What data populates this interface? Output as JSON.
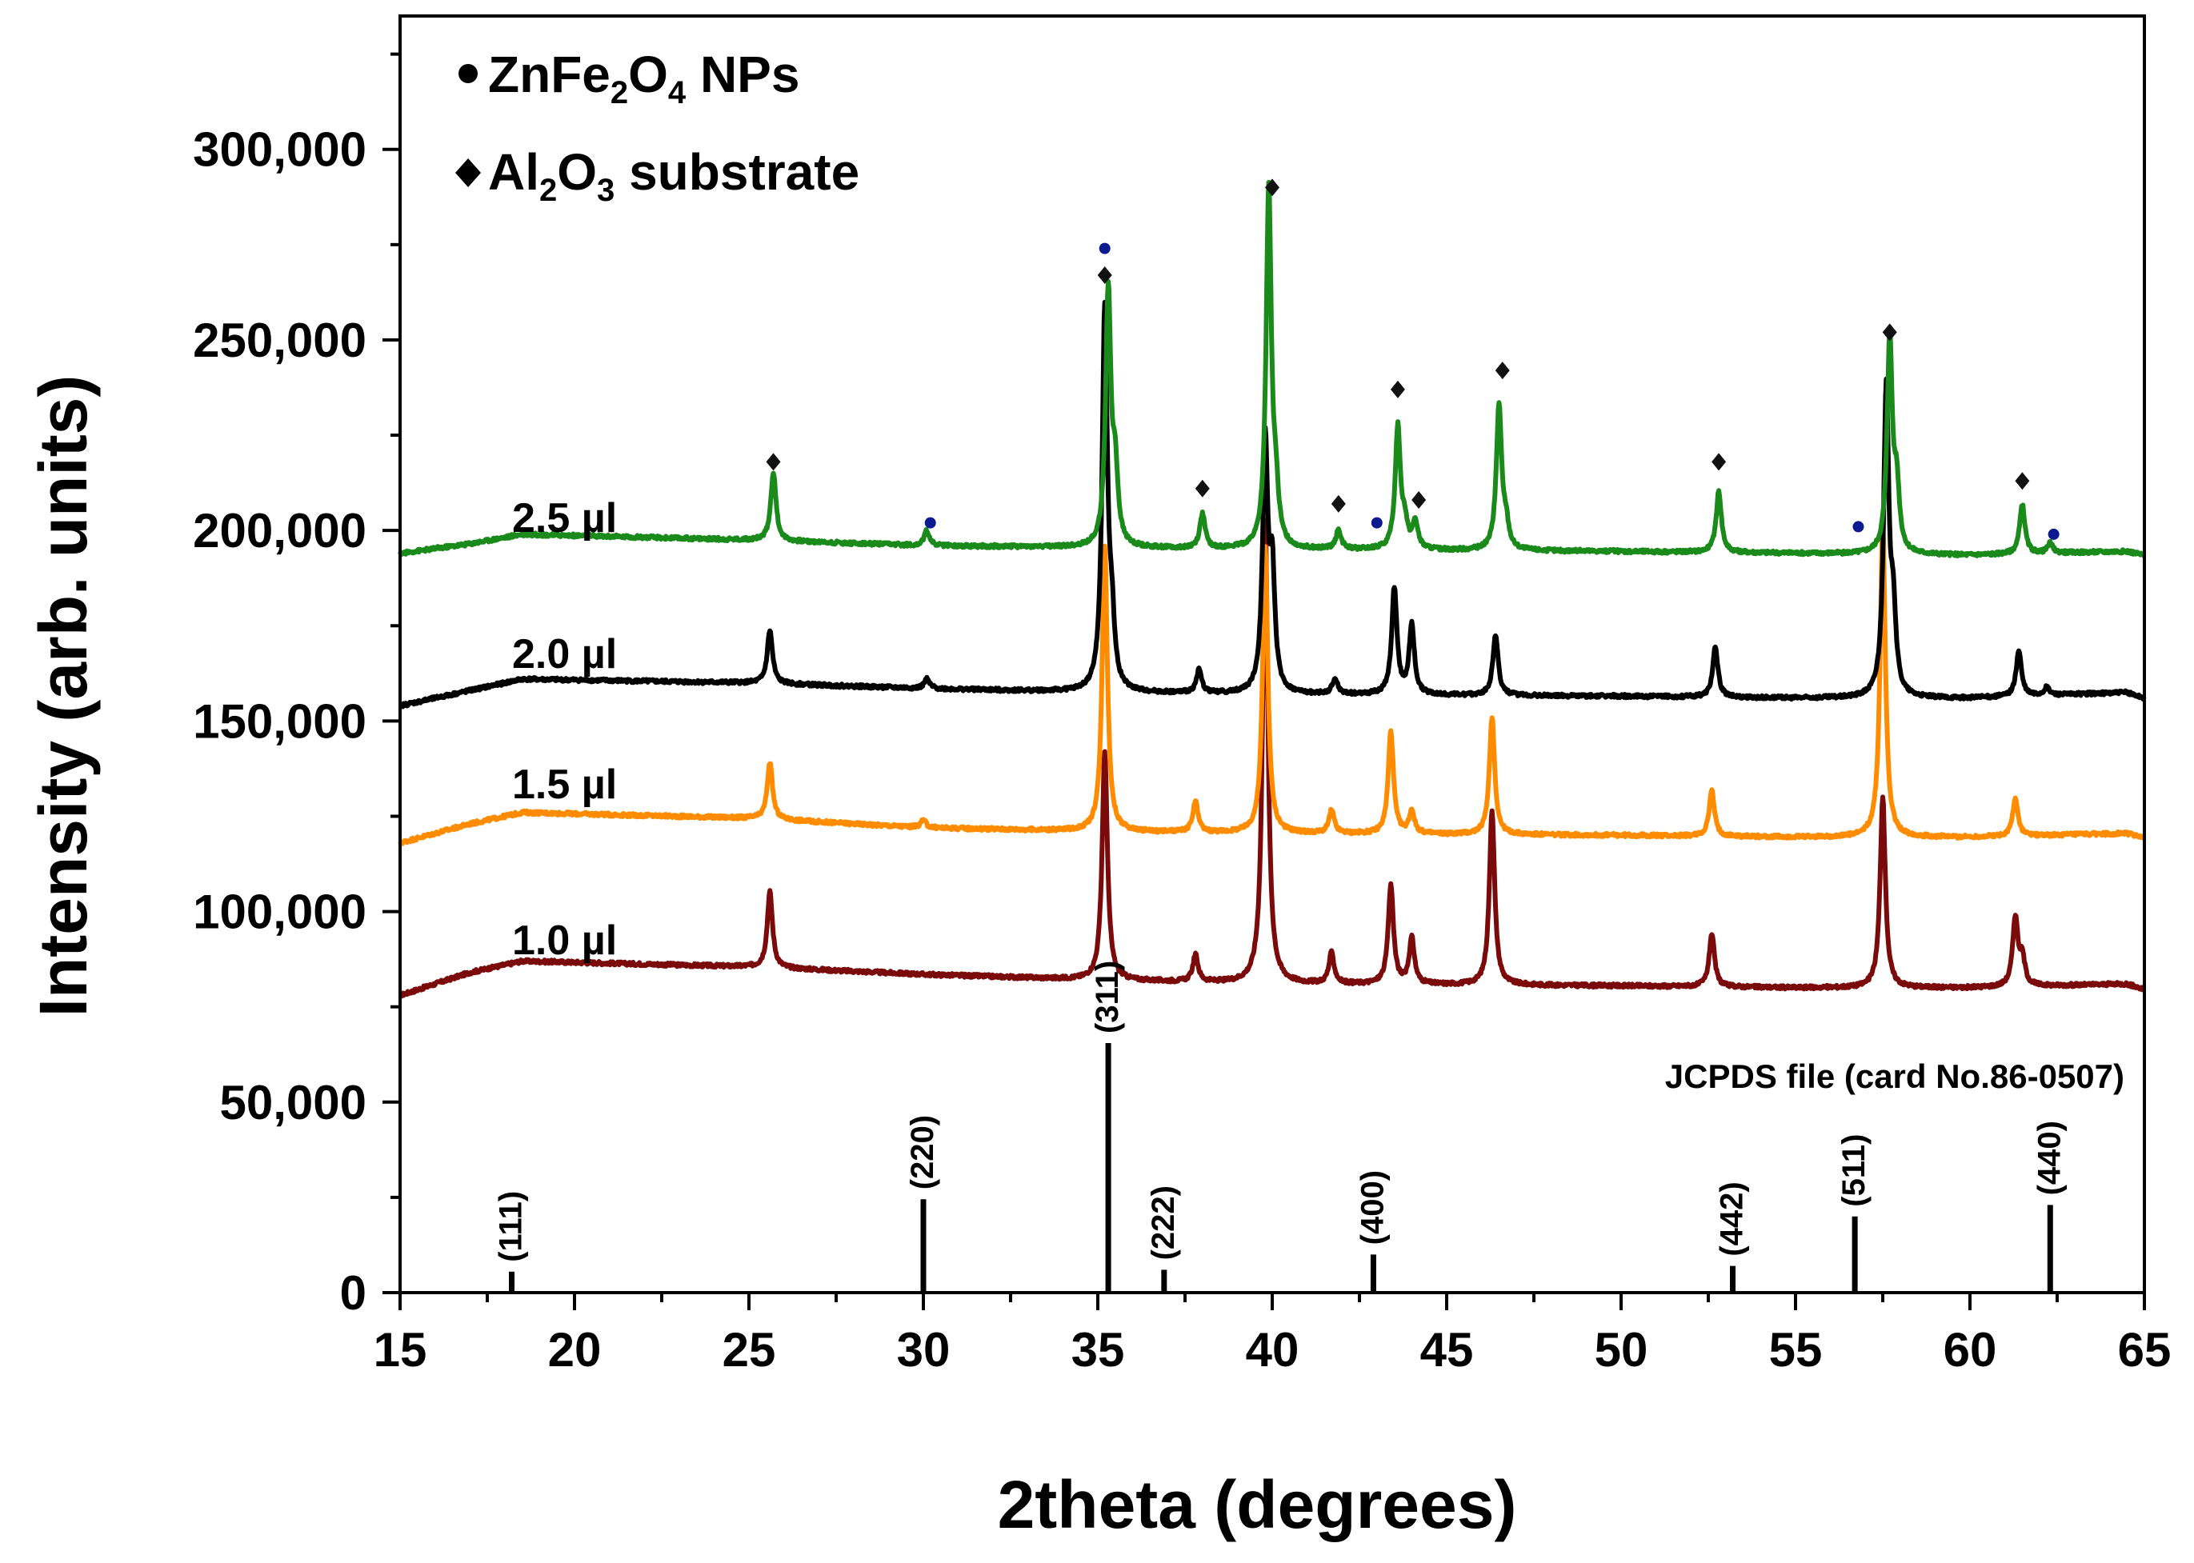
{
  "chart_data": {
    "type": "line",
    "title": "",
    "xlabel": "2theta (degrees)",
    "ylabel": "Intensity (arb. units)",
    "xlim": [
      15,
      65
    ],
    "ylim": [
      0,
      335000
    ],
    "x_ticks": [
      15,
      20,
      25,
      30,
      35,
      40,
      45,
      50,
      55,
      60,
      65
    ],
    "x_tick_labels": [
      "15",
      "20",
      "25",
      "30",
      "35",
      "40",
      "45",
      "50",
      "55",
      "60",
      "65"
    ],
    "y_ticks": [
      0,
      50000,
      100000,
      150000,
      200000,
      250000,
      300000
    ],
    "y_tick_labels": [
      "0",
      "50,000",
      "100,000",
      "150,000",
      "200,000",
      "250,000",
      "300,000"
    ],
    "legend": [
      {
        "symbol": "circle",
        "text": "ZnFe",
        "sub1": "2",
        "mid": "O",
        "sub2": "4",
        "tail": " NPs"
      },
      {
        "symbol": "diamond",
        "text": "Al",
        "sub1": "2",
        "mid": "O",
        "sub2": "3",
        "tail": " substrate"
      }
    ],
    "series": [
      {
        "name": "1.0 µl",
        "label": "1.0 µl",
        "color": "#7B0A0A",
        "baseline": [
          [
            15,
            78000
          ],
          [
            17,
            84000
          ],
          [
            18.5,
            87000
          ],
          [
            25,
            85500
          ],
          [
            30,
            83500
          ],
          [
            35,
            82000
          ],
          [
            40,
            81000
          ],
          [
            50,
            80500
          ],
          [
            55,
            80000
          ],
          [
            60,
            80000
          ],
          [
            64.5,
            81000
          ],
          [
            65,
            79500
          ]
        ],
        "peaks": [
          [
            25.6,
            20000
          ],
          [
            35.2,
            60000
          ],
          [
            37.8,
            7000
          ],
          [
            39.8,
            122000
          ],
          [
            41.7,
            8000
          ],
          [
            43.4,
            26000
          ],
          [
            44.0,
            12000
          ],
          [
            46.3,
            46000
          ],
          [
            52.6,
            14000
          ],
          [
            57.5,
            50000
          ],
          [
            61.3,
            18000
          ],
          [
            61.5,
            7000
          ]
        ]
      },
      {
        "name": "1.5 µl",
        "label": "1.5 µl",
        "color": "#FF8C00",
        "baseline": [
          [
            15,
            118000
          ],
          [
            17,
            123000
          ],
          [
            18.5,
            126000
          ],
          [
            25,
            124500
          ],
          [
            30,
            122000
          ],
          [
            35,
            121000
          ],
          [
            40,
            120500
          ],
          [
            50,
            120000
          ],
          [
            55,
            119500
          ],
          [
            60,
            119500
          ],
          [
            64.5,
            120500
          ],
          [
            65,
            119500
          ]
        ],
        "peaks": [
          [
            25.6,
            15000
          ],
          [
            30.0,
            2000
          ],
          [
            35.2,
            75000
          ],
          [
            37.8,
            8000
          ],
          [
            39.8,
            75000
          ],
          [
            41.7,
            6000
          ],
          [
            43.4,
            27000
          ],
          [
            44.0,
            6000
          ],
          [
            46.3,
            31000
          ],
          [
            52.6,
            12000
          ],
          [
            57.5,
            82000
          ],
          [
            61.3,
            10000
          ]
        ]
      },
      {
        "name": "2.0 µl",
        "label": "2.0 µl",
        "color": "#000000",
        "baseline": [
          [
            15,
            154000
          ],
          [
            17,
            158000
          ],
          [
            18.5,
            161000
          ],
          [
            25,
            160000
          ],
          [
            30,
            158500
          ],
          [
            35,
            157500
          ],
          [
            40,
            157000
          ],
          [
            50,
            156500
          ],
          [
            55,
            156000
          ],
          [
            60,
            156000
          ],
          [
            64.5,
            157500
          ],
          [
            65,
            156000
          ]
        ],
        "peaks": [
          [
            25.6,
            14000
          ],
          [
            30.1,
            2500
          ],
          [
            35.2,
            100000
          ],
          [
            35.4,
            15000
          ],
          [
            37.9,
            6000
          ],
          [
            39.8,
            65000
          ],
          [
            40.0,
            30000
          ],
          [
            41.8,
            4000
          ],
          [
            43.5,
            28000
          ],
          [
            44.0,
            18000
          ],
          [
            46.4,
            16000
          ],
          [
            52.7,
            13000
          ],
          [
            57.6,
            80000
          ],
          [
            57.8,
            20000
          ],
          [
            61.4,
            12000
          ],
          [
            62.2,
            2000
          ]
        ]
      },
      {
        "name": "2.5 µl",
        "label": "2.5 µl",
        "color": "#1A8A1A",
        "baseline": [
          [
            15,
            194000
          ],
          [
            17,
            196500
          ],
          [
            18.5,
            199000
          ],
          [
            25,
            197500
          ],
          [
            30,
            196000
          ],
          [
            35,
            195500
          ],
          [
            40,
            195000
          ],
          [
            50,
            194500
          ],
          [
            55,
            194000
          ],
          [
            60,
            193500
          ],
          [
            64.5,
            194500
          ],
          [
            65,
            193500
          ]
        ],
        "peaks": [
          [
            25.7,
            18000
          ],
          [
            30.1,
            4000
          ],
          [
            35.3,
            67000
          ],
          [
            35.5,
            18000
          ],
          [
            38.0,
            9000
          ],
          [
            39.9,
            94000
          ],
          [
            40.1,
            12000
          ],
          [
            41.9,
            5000
          ],
          [
            43.6,
            32000
          ],
          [
            43.8,
            6000
          ],
          [
            44.1,
            7000
          ],
          [
            46.5,
            38000
          ],
          [
            46.7,
            6000
          ],
          [
            52.8,
            16000
          ],
          [
            57.7,
            56000
          ],
          [
            57.9,
            16000
          ],
          [
            61.5,
            13000
          ],
          [
            62.3,
            2500
          ]
        ]
      }
    ],
    "markers": {
      "znfe2o4_circles": [
        [
          30.2,
          202000
        ],
        [
          35.2,
          274000
        ],
        [
          43.0,
          202000
        ],
        [
          56.8,
          201000
        ],
        [
          62.4,
          199000
        ]
      ],
      "al2o3_diamonds": [
        [
          25.7,
          218000
        ],
        [
          35.2,
          267000
        ],
        [
          38.0,
          211000
        ],
        [
          40.0,
          290000
        ],
        [
          41.9,
          207000
        ],
        [
          43.6,
          237000
        ],
        [
          44.2,
          208000
        ],
        [
          46.6,
          242000
        ],
        [
          52.8,
          218000
        ],
        [
          57.7,
          252000
        ],
        [
          61.5,
          213000
        ]
      ]
    },
    "reference": {
      "title": "JCPDS file (card No.86-0507)",
      "lines": [
        {
          "x": 18.2,
          "y": 5500,
          "label": "(111)"
        },
        {
          "x": 30.0,
          "y": 24500,
          "label": "(220)"
        },
        {
          "x": 35.3,
          "y": 65500,
          "label": "(311)"
        },
        {
          "x": 36.9,
          "y": 6000,
          "label": "(222)"
        },
        {
          "x": 42.9,
          "y": 10000,
          "label": "(400)"
        },
        {
          "x": 53.2,
          "y": 7000,
          "label": "(442)"
        },
        {
          "x": 56.7,
          "y": 20000,
          "label": "(511)"
        },
        {
          "x": 62.3,
          "y": 23000,
          "label": "(440)"
        }
      ]
    }
  }
}
